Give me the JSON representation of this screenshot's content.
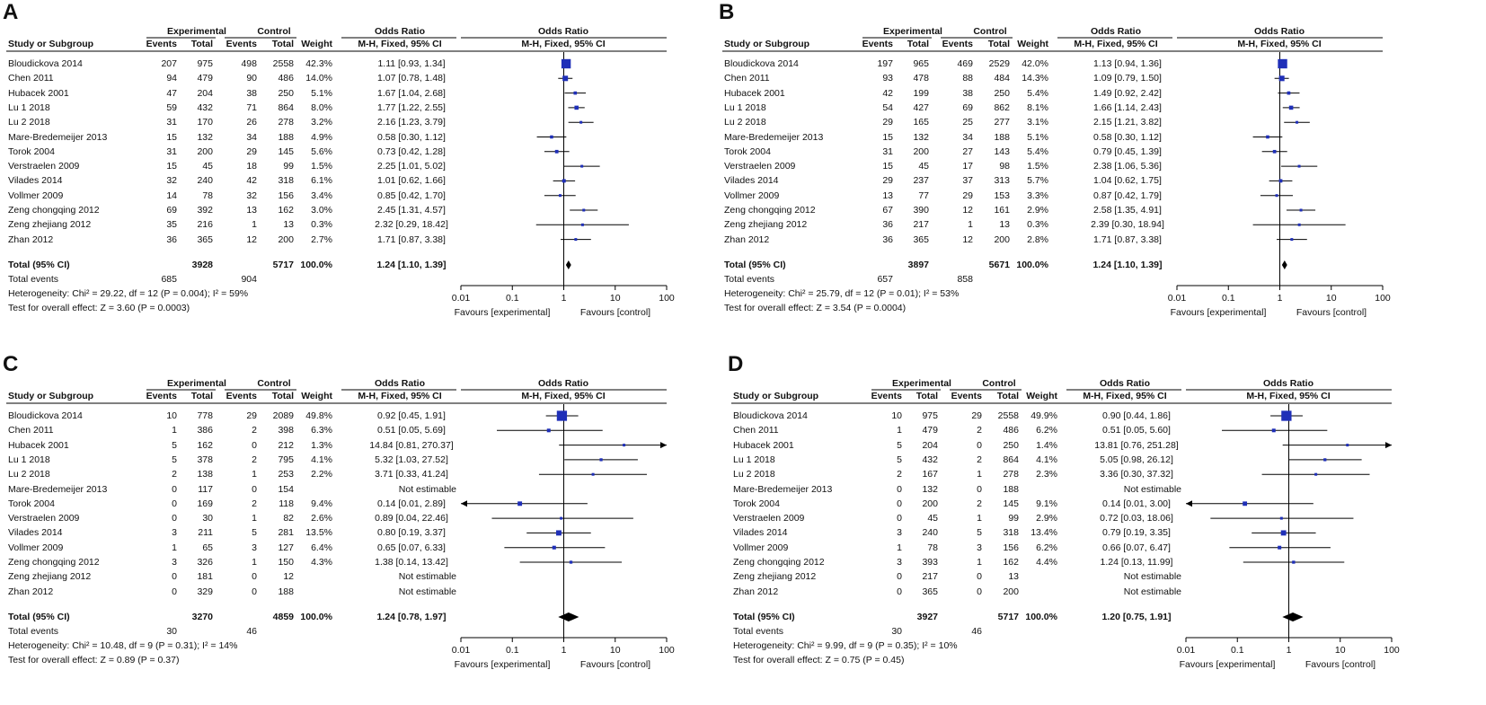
{
  "headers": {
    "group_experimental": "Experimental",
    "group_control": "Control",
    "odds_ratio": "Odds Ratio",
    "study": "Study or Subgroup",
    "events": "Events",
    "total": "Total",
    "weight": "Weight",
    "method": "M-H, Fixed, 95% CI"
  },
  "axis": {
    "ticks": [
      "0.01",
      "0.1",
      "1",
      "10",
      "100"
    ],
    "favours_left": "Favours [experimental]",
    "favours_right": "Favours [control]"
  },
  "colors": {
    "marker": "#1f2fb8",
    "line": "#000000",
    "diamond": "#000000"
  },
  "chart_data": [
    {
      "type": "forest",
      "panel": "A",
      "xscale": "log",
      "xlim": [
        0.01,
        100
      ],
      "rows": [
        {
          "study": "Bloudickova 2014",
          "exp_events": "207",
          "exp_total": "975",
          "ctl_events": "498",
          "ctl_total": "2558",
          "weight": "42.3%",
          "ci_text": "1.11 [0.93, 1.34]",
          "or": 1.11,
          "lo": 0.93,
          "hi": 1.34
        },
        {
          "study": "Chen 2011",
          "exp_events": "94",
          "exp_total": "479",
          "ctl_events": "90",
          "ctl_total": "486",
          "weight": "14.0%",
          "ci_text": "1.07 [0.78, 1.48]",
          "or": 1.07,
          "lo": 0.78,
          "hi": 1.48
        },
        {
          "study": "Hubacek 2001",
          "exp_events": "47",
          "exp_total": "204",
          "ctl_events": "38",
          "ctl_total": "250",
          "weight": "5.1%",
          "ci_text": "1.67 [1.04, 2.68]",
          "or": 1.67,
          "lo": 1.04,
          "hi": 2.68
        },
        {
          "study": "Lu 1 2018",
          "exp_events": "59",
          "exp_total": "432",
          "ctl_events": "71",
          "ctl_total": "864",
          "weight": "8.0%",
          "ci_text": "1.77 [1.22, 2.55]",
          "or": 1.77,
          "lo": 1.22,
          "hi": 2.55
        },
        {
          "study": "Lu 2 2018",
          "exp_events": "31",
          "exp_total": "170",
          "ctl_events": "26",
          "ctl_total": "278",
          "weight": "3.2%",
          "ci_text": "2.16 [1.23, 3.79]",
          "or": 2.16,
          "lo": 1.23,
          "hi": 3.79
        },
        {
          "study": "Mare-Bredemeijer 2013",
          "exp_events": "15",
          "exp_total": "132",
          "ctl_events": "34",
          "ctl_total": "188",
          "weight": "4.9%",
          "ci_text": "0.58 [0.30, 1.12]",
          "or": 0.58,
          "lo": 0.3,
          "hi": 1.12
        },
        {
          "study": "Torok 2004",
          "exp_events": "31",
          "exp_total": "200",
          "ctl_events": "29",
          "ctl_total": "145",
          "weight": "5.6%",
          "ci_text": "0.73 [0.42, 1.28]",
          "or": 0.73,
          "lo": 0.42,
          "hi": 1.28
        },
        {
          "study": "Verstraelen 2009",
          "exp_events": "15",
          "exp_total": "45",
          "ctl_events": "18",
          "ctl_total": "99",
          "weight": "1.5%",
          "ci_text": "2.25 [1.01, 5.02]",
          "or": 2.25,
          "lo": 1.01,
          "hi": 5.02
        },
        {
          "study": "Vilades 2014",
          "exp_events": "32",
          "exp_total": "240",
          "ctl_events": "42",
          "ctl_total": "318",
          "weight": "6.1%",
          "ci_text": "1.01 [0.62, 1.66]",
          "or": 1.01,
          "lo": 0.62,
          "hi": 1.66
        },
        {
          "study": "Vollmer 2009",
          "exp_events": "14",
          "exp_total": "78",
          "ctl_events": "32",
          "ctl_total": "156",
          "weight": "3.4%",
          "ci_text": "0.85 [0.42, 1.70]",
          "or": 0.85,
          "lo": 0.42,
          "hi": 1.7
        },
        {
          "study": "Zeng chongqing 2012",
          "exp_events": "69",
          "exp_total": "392",
          "ctl_events": "13",
          "ctl_total": "162",
          "weight": "3.0%",
          "ci_text": "2.45 [1.31, 4.57]",
          "or": 2.45,
          "lo": 1.31,
          "hi": 4.57
        },
        {
          "study": "Zeng zhejiang 2012",
          "exp_events": "35",
          "exp_total": "216",
          "ctl_events": "1",
          "ctl_total": "13",
          "weight": "0.3%",
          "ci_text": "2.32 [0.29, 18.42]",
          "or": 2.32,
          "lo": 0.29,
          "hi": 18.42
        },
        {
          "study": "Zhan 2012",
          "exp_events": "36",
          "exp_total": "365",
          "ctl_events": "12",
          "ctl_total": "200",
          "weight": "2.7%",
          "ci_text": "1.71 [0.87, 3.38]",
          "or": 1.71,
          "lo": 0.87,
          "hi": 3.38
        }
      ],
      "total": {
        "label": "Total (95% CI)",
        "exp_total": "3928",
        "ctl_total": "5717",
        "weight": "100.0%",
        "ci_text": "1.24 [1.10, 1.39]",
        "or": 1.24,
        "lo": 1.1,
        "hi": 1.39
      },
      "total_events": {
        "label": "Total events",
        "exp": "685",
        "ctl": "904"
      },
      "heterogeneity": "Heterogeneity: Chi² = 29.22, df = 12 (P = 0.004); I² = 59%",
      "overall_effect": "Test for overall effect: Z = 3.60 (P = 0.0003)"
    },
    {
      "type": "forest",
      "panel": "B",
      "xscale": "log",
      "xlim": [
        0.01,
        100
      ],
      "rows": [
        {
          "study": "Bloudickova 2014",
          "exp_events": "197",
          "exp_total": "965",
          "ctl_events": "469",
          "ctl_total": "2529",
          "weight": "42.0%",
          "ci_text": "1.13 [0.94, 1.36]",
          "or": 1.13,
          "lo": 0.94,
          "hi": 1.36
        },
        {
          "study": "Chen 2011",
          "exp_events": "93",
          "exp_total": "478",
          "ctl_events": "88",
          "ctl_total": "484",
          "weight": "14.3%",
          "ci_text": "1.09 [0.79, 1.50]",
          "or": 1.09,
          "lo": 0.79,
          "hi": 1.5
        },
        {
          "study": "Hubacek 2001",
          "exp_events": "42",
          "exp_total": "199",
          "ctl_events": "38",
          "ctl_total": "250",
          "weight": "5.4%",
          "ci_text": "1.49 [0.92, 2.42]",
          "or": 1.49,
          "lo": 0.92,
          "hi": 2.42
        },
        {
          "study": "Lu 1 2018",
          "exp_events": "54",
          "exp_total": "427",
          "ctl_events": "69",
          "ctl_total": "862",
          "weight": "8.1%",
          "ci_text": "1.66 [1.14, 2.43]",
          "or": 1.66,
          "lo": 1.14,
          "hi": 2.43
        },
        {
          "study": "Lu 2 2018",
          "exp_events": "29",
          "exp_total": "165",
          "ctl_events": "25",
          "ctl_total": "277",
          "weight": "3.1%",
          "ci_text": "2.15 [1.21, 3.82]",
          "or": 2.15,
          "lo": 1.21,
          "hi": 3.82
        },
        {
          "study": "Mare-Bredemeijer 2013",
          "exp_events": "15",
          "exp_total": "132",
          "ctl_events": "34",
          "ctl_total": "188",
          "weight": "5.1%",
          "ci_text": "0.58 [0.30, 1.12]",
          "or": 0.58,
          "lo": 0.3,
          "hi": 1.12
        },
        {
          "study": "Torok 2004",
          "exp_events": "31",
          "exp_total": "200",
          "ctl_events": "27",
          "ctl_total": "143",
          "weight": "5.4%",
          "ci_text": "0.79 [0.45, 1.39]",
          "or": 0.79,
          "lo": 0.45,
          "hi": 1.39
        },
        {
          "study": "Verstraelen 2009",
          "exp_events": "15",
          "exp_total": "45",
          "ctl_events": "17",
          "ctl_total": "98",
          "weight": "1.5%",
          "ci_text": "2.38 [1.06, 5.36]",
          "or": 2.38,
          "lo": 1.06,
          "hi": 5.36
        },
        {
          "study": "Vilades 2014",
          "exp_events": "29",
          "exp_total": "237",
          "ctl_events": "37",
          "ctl_total": "313",
          "weight": "5.7%",
          "ci_text": "1.04 [0.62, 1.75]",
          "or": 1.04,
          "lo": 0.62,
          "hi": 1.75
        },
        {
          "study": "Vollmer 2009",
          "exp_events": "13",
          "exp_total": "77",
          "ctl_events": "29",
          "ctl_total": "153",
          "weight": "3.3%",
          "ci_text": "0.87 [0.42, 1.79]",
          "or": 0.87,
          "lo": 0.42,
          "hi": 1.79
        },
        {
          "study": "Zeng chongqing 2012",
          "exp_events": "67",
          "exp_total": "390",
          "ctl_events": "12",
          "ctl_total": "161",
          "weight": "2.9%",
          "ci_text": "2.58 [1.35, 4.91]",
          "or": 2.58,
          "lo": 1.35,
          "hi": 4.91
        },
        {
          "study": "Zeng zhejiang 2012",
          "exp_events": "36",
          "exp_total": "217",
          "ctl_events": "1",
          "ctl_total": "13",
          "weight": "0.3%",
          "ci_text": "2.39 [0.30, 18.94]",
          "or": 2.39,
          "lo": 0.3,
          "hi": 18.94
        },
        {
          "study": "Zhan 2012",
          "exp_events": "36",
          "exp_total": "365",
          "ctl_events": "12",
          "ctl_total": "200",
          "weight": "2.8%",
          "ci_text": "1.71 [0.87, 3.38]",
          "or": 1.71,
          "lo": 0.87,
          "hi": 3.38
        }
      ],
      "total": {
        "label": "Total (95% CI)",
        "exp_total": "3897",
        "ctl_total": "5671",
        "weight": "100.0%",
        "ci_text": "1.24 [1.10, 1.39]",
        "or": 1.24,
        "lo": 1.1,
        "hi": 1.39
      },
      "total_events": {
        "label": "Total events",
        "exp": "657",
        "ctl": "858"
      },
      "heterogeneity": "Heterogeneity: Chi² = 25.79, df = 12 (P = 0.01); I² = 53%",
      "overall_effect": "Test for overall effect: Z = 3.54 (P = 0.0004)"
    },
    {
      "type": "forest",
      "panel": "C",
      "xscale": "log",
      "xlim": [
        0.01,
        100
      ],
      "rows": [
        {
          "study": "Bloudickova 2014",
          "exp_events": "10",
          "exp_total": "778",
          "ctl_events": "29",
          "ctl_total": "2089",
          "weight": "49.8%",
          "ci_text": "0.92 [0.45, 1.91]",
          "or": 0.92,
          "lo": 0.45,
          "hi": 1.91
        },
        {
          "study": "Chen 2011",
          "exp_events": "1",
          "exp_total": "386",
          "ctl_events": "2",
          "ctl_total": "398",
          "weight": "6.3%",
          "ci_text": "0.51 [0.05, 5.69]",
          "or": 0.51,
          "lo": 0.05,
          "hi": 5.69
        },
        {
          "study": "Hubacek 2001",
          "exp_events": "5",
          "exp_total": "162",
          "ctl_events": "0",
          "ctl_total": "212",
          "weight": "1.3%",
          "ci_text": "14.84 [0.81, 270.37]",
          "or": 14.84,
          "lo": 0.81,
          "hi": 270.37
        },
        {
          "study": "Lu 1 2018",
          "exp_events": "5",
          "exp_total": "378",
          "ctl_events": "2",
          "ctl_total": "795",
          "weight": "4.1%",
          "ci_text": "5.32 [1.03, 27.52]",
          "or": 5.32,
          "lo": 1.03,
          "hi": 27.52
        },
        {
          "study": "Lu 2 2018",
          "exp_events": "2",
          "exp_total": "138",
          "ctl_events": "1",
          "ctl_total": "253",
          "weight": "2.2%",
          "ci_text": "3.71 [0.33, 41.24]",
          "or": 3.71,
          "lo": 0.33,
          "hi": 41.24
        },
        {
          "study": "Mare-Bredemeijer 2013",
          "exp_events": "0",
          "exp_total": "117",
          "ctl_events": "0",
          "ctl_total": "154",
          "weight": "",
          "ci_text": "Not estimable",
          "or": null,
          "lo": null,
          "hi": null
        },
        {
          "study": "Torok 2004",
          "exp_events": "0",
          "exp_total": "169",
          "ctl_events": "2",
          "ctl_total": "118",
          "weight": "9.4%",
          "ci_text": "0.14 [0.01, 2.89]",
          "or": 0.14,
          "lo": 0.01,
          "hi": 2.89
        },
        {
          "study": "Verstraelen 2009",
          "exp_events": "0",
          "exp_total": "30",
          "ctl_events": "1",
          "ctl_total": "82",
          "weight": "2.6%",
          "ci_text": "0.89 [0.04, 22.46]",
          "or": 0.89,
          "lo": 0.04,
          "hi": 22.46
        },
        {
          "study": "Vilades 2014",
          "exp_events": "3",
          "exp_total": "211",
          "ctl_events": "5",
          "ctl_total": "281",
          "weight": "13.5%",
          "ci_text": "0.80 [0.19, 3.37]",
          "or": 0.8,
          "lo": 0.19,
          "hi": 3.37
        },
        {
          "study": "Vollmer 2009",
          "exp_events": "1",
          "exp_total": "65",
          "ctl_events": "3",
          "ctl_total": "127",
          "weight": "6.4%",
          "ci_text": "0.65 [0.07, 6.33]",
          "or": 0.65,
          "lo": 0.07,
          "hi": 6.33
        },
        {
          "study": "Zeng chongqing 2012",
          "exp_events": "3",
          "exp_total": "326",
          "ctl_events": "1",
          "ctl_total": "150",
          "weight": "4.3%",
          "ci_text": "1.38 [0.14, 13.42]",
          "or": 1.38,
          "lo": 0.14,
          "hi": 13.42
        },
        {
          "study": "Zeng zhejiang 2012",
          "exp_events": "0",
          "exp_total": "181",
          "ctl_events": "0",
          "ctl_total": "12",
          "weight": "",
          "ci_text": "Not estimable",
          "or": null,
          "lo": null,
          "hi": null
        },
        {
          "study": "Zhan 2012",
          "exp_events": "0",
          "exp_total": "329",
          "ctl_events": "0",
          "ctl_total": "188",
          "weight": "",
          "ci_text": "Not estimable",
          "or": null,
          "lo": null,
          "hi": null
        }
      ],
      "total": {
        "label": "Total (95% CI)",
        "exp_total": "3270",
        "ctl_total": "4859",
        "weight": "100.0%",
        "ci_text": "1.24 [0.78, 1.97]",
        "or": 1.24,
        "lo": 0.78,
        "hi": 1.97
      },
      "total_events": {
        "label": "Total events",
        "exp": "30",
        "ctl": "46"
      },
      "heterogeneity": "Heterogeneity: Chi² = 10.48, df = 9 (P = 0.31); I² = 14%",
      "overall_effect": "Test for overall effect: Z = 0.89 (P = 0.37)"
    },
    {
      "type": "forest",
      "panel": "D",
      "xscale": "log",
      "xlim": [
        0.01,
        100
      ],
      "rows": [
        {
          "study": "Bloudickova 2014",
          "exp_events": "10",
          "exp_total": "975",
          "ctl_events": "29",
          "ctl_total": "2558",
          "weight": "49.9%",
          "ci_text": "0.90 [0.44, 1.86]",
          "or": 0.9,
          "lo": 0.44,
          "hi": 1.86
        },
        {
          "study": "Chen 2011",
          "exp_events": "1",
          "exp_total": "479",
          "ctl_events": "2",
          "ctl_total": "486",
          "weight": "6.2%",
          "ci_text": "0.51 [0.05, 5.60]",
          "or": 0.51,
          "lo": 0.05,
          "hi": 5.6
        },
        {
          "study": "Hubacek 2001",
          "exp_events": "5",
          "exp_total": "204",
          "ctl_events": "0",
          "ctl_total": "250",
          "weight": "1.4%",
          "ci_text": "13.81 [0.76, 251.28]",
          "or": 13.81,
          "lo": 0.76,
          "hi": 251.28
        },
        {
          "study": "Lu 1 2018",
          "exp_events": "5",
          "exp_total": "432",
          "ctl_events": "2",
          "ctl_total": "864",
          "weight": "4.1%",
          "ci_text": "5.05 [0.98, 26.12]",
          "or": 5.05,
          "lo": 0.98,
          "hi": 26.12
        },
        {
          "study": "Lu 2 2018",
          "exp_events": "2",
          "exp_total": "167",
          "ctl_events": "1",
          "ctl_total": "278",
          "weight": "2.3%",
          "ci_text": "3.36 [0.30, 37.32]",
          "or": 3.36,
          "lo": 0.3,
          "hi": 37.32
        },
        {
          "study": "Mare-Bredemeijer 2013",
          "exp_events": "0",
          "exp_total": "132",
          "ctl_events": "0",
          "ctl_total": "188",
          "weight": "",
          "ci_text": "Not estimable",
          "or": null,
          "lo": null,
          "hi": null
        },
        {
          "study": "Torok 2004",
          "exp_events": "0",
          "exp_total": "200",
          "ctl_events": "2",
          "ctl_total": "145",
          "weight": "9.1%",
          "ci_text": "0.14 [0.01, 3.00]",
          "or": 0.14,
          "lo": 0.01,
          "hi": 3.0
        },
        {
          "study": "Verstraelen 2009",
          "exp_events": "0",
          "exp_total": "45",
          "ctl_events": "1",
          "ctl_total": "99",
          "weight": "2.9%",
          "ci_text": "0.72 [0.03, 18.06]",
          "or": 0.72,
          "lo": 0.03,
          "hi": 18.06
        },
        {
          "study": "Vilades 2014",
          "exp_events": "3",
          "exp_total": "240",
          "ctl_events": "5",
          "ctl_total": "318",
          "weight": "13.4%",
          "ci_text": "0.79 [0.19, 3.35]",
          "or": 0.79,
          "lo": 0.19,
          "hi": 3.35
        },
        {
          "study": "Vollmer 2009",
          "exp_events": "1",
          "exp_total": "78",
          "ctl_events": "3",
          "ctl_total": "156",
          "weight": "6.2%",
          "ci_text": "0.66 [0.07, 6.47]",
          "or": 0.66,
          "lo": 0.07,
          "hi": 6.47
        },
        {
          "study": "Zeng chongqing 2012",
          "exp_events": "3",
          "exp_total": "393",
          "ctl_events": "1",
          "ctl_total": "162",
          "weight": "4.4%",
          "ci_text": "1.24 [0.13, 11.99]",
          "or": 1.24,
          "lo": 0.13,
          "hi": 11.99
        },
        {
          "study": "Zeng zhejiang 2012",
          "exp_events": "0",
          "exp_total": "217",
          "ctl_events": "0",
          "ctl_total": "13",
          "weight": "",
          "ci_text": "Not estimable",
          "or": null,
          "lo": null,
          "hi": null
        },
        {
          "study": "Zhan 2012",
          "exp_events": "0",
          "exp_total": "365",
          "ctl_events": "0",
          "ctl_total": "200",
          "weight": "",
          "ci_text": "Not estimable",
          "or": null,
          "lo": null,
          "hi": null
        }
      ],
      "total": {
        "label": "Total (95% CI)",
        "exp_total": "3927",
        "ctl_total": "5717",
        "weight": "100.0%",
        "ci_text": "1.20 [0.75, 1.91]",
        "or": 1.2,
        "lo": 0.75,
        "hi": 1.91
      },
      "total_events": {
        "label": "Total events",
        "exp": "30",
        "ctl": "46"
      },
      "heterogeneity": "Heterogeneity: Chi² = 9.99, df = 9 (P = 0.35); I² = 10%",
      "overall_effect": "Test for overall effect: Z = 0.75 (P = 0.45)"
    }
  ]
}
